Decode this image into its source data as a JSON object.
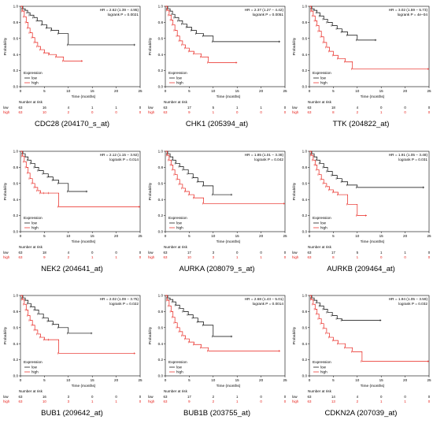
{
  "axis_labels": {
    "xlabel": "Time (months)",
    "ylabel": "Probability",
    "risk_title": "Number at risk",
    "legend_title": "Expression",
    "low_label": "low",
    "high_label": "high"
  },
  "colors": {
    "low": "#000000",
    "high": "#e8201a"
  },
  "chart_data": [
    {
      "type": "line",
      "title": "CDC28 (204170_s_at)",
      "hr_text": "HR = 2.62 (1.39 − 4.95)",
      "p_text": "logrank P = 0.0021",
      "xlabel": "Time (months)",
      "ylabel": "Probability",
      "xlim": [
        0,
        250
      ],
      "ylim": [
        0,
        1
      ],
      "xticks": [
        0,
        50,
        100,
        150,
        200,
        250
      ],
      "xtick_labels": [
        "0",
        "5",
        "10",
        "15",
        "20",
        "25"
      ],
      "yticks": [
        0,
        0.2,
        0.4,
        0.6,
        0.8,
        1.0
      ],
      "ytick_labels": [
        "0.0",
        "0.2",
        "0.4",
        "0.6",
        "0.8",
        "1.0"
      ],
      "series": [
        {
          "name": "low",
          "x": [
            0,
            5,
            10,
            15,
            20,
            28,
            35,
            45,
            55,
            65,
            80,
            100,
            240
          ],
          "y": [
            1.0,
            0.97,
            0.95,
            0.92,
            0.89,
            0.86,
            0.82,
            0.77,
            0.73,
            0.7,
            0.66,
            0.52,
            0.52
          ]
        },
        {
          "name": "high",
          "x": [
            0,
            4,
            8,
            12,
            16,
            20,
            25,
            30,
            36,
            42,
            50,
            60,
            75,
            90,
            130
          ],
          "y": [
            1.0,
            0.94,
            0.87,
            0.8,
            0.73,
            0.67,
            0.61,
            0.55,
            0.5,
            0.46,
            0.42,
            0.4,
            0.37,
            0.32,
            0.32
          ]
        }
      ],
      "risk_low": [
        "63",
        "16",
        "4",
        "1",
        "1",
        "0"
      ],
      "risk_high": [
        "63",
        "10",
        "2",
        "0",
        "0",
        "0"
      ]
    },
    {
      "type": "line",
      "title": "CHK1 (205394_at)",
      "hr_text": "HR = 2.37 (1.27 − 4.42)",
      "p_text": "logrank P = 0.0051",
      "xlabel": "Time (months)",
      "ylabel": "Probability",
      "xlim": [
        0,
        250
      ],
      "ylim": [
        0,
        1
      ],
      "xticks": [
        0,
        50,
        100,
        150,
        200,
        250
      ],
      "xtick_labels": [
        "0",
        "5",
        "10",
        "15",
        "20",
        "25"
      ],
      "yticks": [
        0,
        0.2,
        0.4,
        0.6,
        0.8,
        1.0
      ],
      "ytick_labels": [
        "0.0",
        "0.2",
        "0.4",
        "0.6",
        "0.8",
        "1.0"
      ],
      "series": [
        {
          "name": "low",
          "x": [
            0,
            5,
            10,
            15,
            20,
            28,
            36,
            45,
            55,
            65,
            80,
            100,
            240
          ],
          "y": [
            1.0,
            0.97,
            0.94,
            0.9,
            0.86,
            0.82,
            0.78,
            0.74,
            0.7,
            0.66,
            0.63,
            0.56,
            0.56
          ]
        },
        {
          "name": "high",
          "x": [
            0,
            4,
            8,
            12,
            16,
            20,
            25,
            30,
            36,
            42,
            50,
            60,
            75,
            90,
            150
          ],
          "y": [
            1.0,
            0.95,
            0.89,
            0.83,
            0.77,
            0.7,
            0.63,
            0.57,
            0.52,
            0.48,
            0.44,
            0.41,
            0.37,
            0.3,
            0.3
          ]
        }
      ],
      "risk_low": [
        "63",
        "17",
        "5",
        "1",
        "1",
        "0"
      ],
      "risk_high": [
        "63",
        "9",
        "1",
        "0",
        "0",
        "0"
      ]
    },
    {
      "type": "line",
      "title": "TTK (204822_at)",
      "hr_text": "HR = 3.02 (1.59 − 5.73)",
      "p_text": "logrank P = 4e−04",
      "xlabel": "Time (months)",
      "ylabel": "Probability",
      "xlim": [
        0,
        250
      ],
      "ylim": [
        0,
        1
      ],
      "xticks": [
        0,
        50,
        100,
        150,
        200,
        250
      ],
      "xtick_labels": [
        "0",
        "5",
        "10",
        "15",
        "20",
        "25"
      ],
      "yticks": [
        0,
        0.2,
        0.4,
        0.6,
        0.8,
        1.0
      ],
      "ytick_labels": [
        "0.0",
        "0.2",
        "0.4",
        "0.6",
        "0.8",
        "1.0"
      ],
      "series": [
        {
          "name": "low",
          "x": [
            0,
            5,
            10,
            16,
            22,
            30,
            38,
            48,
            58,
            68,
            80,
            100,
            140
          ],
          "y": [
            1.0,
            0.97,
            0.95,
            0.92,
            0.88,
            0.84,
            0.8,
            0.76,
            0.72,
            0.68,
            0.64,
            0.58,
            0.58
          ]
        },
        {
          "name": "high",
          "x": [
            0,
            4,
            8,
            12,
            16,
            20,
            25,
            30,
            36,
            42,
            50,
            60,
            75,
            90,
            250
          ],
          "y": [
            1.0,
            0.94,
            0.88,
            0.82,
            0.76,
            0.69,
            0.62,
            0.55,
            0.49,
            0.44,
            0.39,
            0.35,
            0.31,
            0.22,
            0.22
          ]
        }
      ],
      "risk_low": [
        "63",
        "18",
        "4",
        "0",
        "0",
        "0"
      ],
      "risk_high": [
        "63",
        "8",
        "2",
        "1",
        "0",
        "0"
      ]
    },
    {
      "type": "line",
      "title": "NEK2 (204641_at)",
      "hr_text": "HR = 2.12 (1.15 − 3.92)",
      "p_text": "logrank P = 0.014",
      "xlabel": "Time (months)",
      "ylabel": "Probability",
      "xlim": [
        0,
        250
      ],
      "ylim": [
        0,
        1
      ],
      "xticks": [
        0,
        50,
        100,
        150,
        200,
        250
      ],
      "xtick_labels": [
        "0",
        "5",
        "10",
        "15",
        "20",
        "25"
      ],
      "yticks": [
        0,
        0.2,
        0.4,
        0.6,
        0.8,
        1.0
      ],
      "ytick_labels": [
        "0.0",
        "0.2",
        "0.4",
        "0.6",
        "0.8",
        "1.0"
      ],
      "series": [
        {
          "name": "low",
          "x": [
            0,
            5,
            10,
            16,
            22,
            30,
            38,
            48,
            58,
            68,
            80,
            100,
            140
          ],
          "y": [
            1.0,
            0.97,
            0.93,
            0.89,
            0.85,
            0.8,
            0.76,
            0.72,
            0.68,
            0.64,
            0.6,
            0.5,
            0.5
          ]
        },
        {
          "name": "high",
          "x": [
            0,
            4,
            8,
            12,
            16,
            20,
            25,
            30,
            36,
            42,
            50,
            60,
            80,
            250
          ],
          "y": [
            1.0,
            0.94,
            0.87,
            0.8,
            0.73,
            0.66,
            0.6,
            0.55,
            0.51,
            0.48,
            0.48,
            0.48,
            0.31,
            0.31
          ]
        }
      ],
      "risk_low": [
        "63",
        "18",
        "4",
        "0",
        "0",
        "0"
      ],
      "risk_high": [
        "63",
        "9",
        "2",
        "1",
        "1",
        "0"
      ]
    },
    {
      "type": "line",
      "title": "AURKA (208079_s_at)",
      "hr_text": "HR = 1.85 (1.01 − 3.38)",
      "p_text": "logrank P = 0.042",
      "xlabel": "Time (months)",
      "ylabel": "Probability",
      "xlim": [
        0,
        250
      ],
      "ylim": [
        0,
        1
      ],
      "xticks": [
        0,
        50,
        100,
        150,
        200,
        250
      ],
      "xtick_labels": [
        "0",
        "5",
        "10",
        "15",
        "20",
        "25"
      ],
      "yticks": [
        0,
        0.2,
        0.4,
        0.6,
        0.8,
        1.0
      ],
      "ytick_labels": [
        "0.0",
        "0.2",
        "0.4",
        "0.6",
        "0.8",
        "1.0"
      ],
      "series": [
        {
          "name": "low",
          "x": [
            0,
            5,
            10,
            16,
            22,
            30,
            38,
            48,
            58,
            68,
            80,
            100,
            140
          ],
          "y": [
            1.0,
            0.97,
            0.93,
            0.89,
            0.85,
            0.81,
            0.77,
            0.72,
            0.67,
            0.62,
            0.57,
            0.46,
            0.46
          ]
        },
        {
          "name": "high",
          "x": [
            0,
            4,
            8,
            12,
            16,
            20,
            25,
            30,
            36,
            42,
            50,
            60,
            80,
            250
          ],
          "y": [
            1.0,
            0.95,
            0.89,
            0.83,
            0.77,
            0.71,
            0.65,
            0.59,
            0.54,
            0.5,
            0.46,
            0.42,
            0.35,
            0.35
          ]
        }
      ],
      "risk_low": [
        "63",
        "17",
        "3",
        "0",
        "0",
        "0"
      ],
      "risk_high": [
        "63",
        "10",
        "3",
        "1",
        "1",
        "0"
      ]
    },
    {
      "type": "line",
      "title": "AURKB (209464_at)",
      "hr_text": "HR = 1.91 (1.05 − 3.48)",
      "p_text": "logrank P = 0.031",
      "xlabel": "Time (months)",
      "ylabel": "Probability",
      "xlim": [
        0,
        250
      ],
      "ylim": [
        0,
        1
      ],
      "xticks": [
        0,
        50,
        100,
        150,
        200,
        250
      ],
      "xtick_labels": [
        "0",
        "5",
        "10",
        "15",
        "20",
        "25"
      ],
      "yticks": [
        0,
        0.2,
        0.4,
        0.6,
        0.8,
        1.0
      ],
      "ytick_labels": [
        "0.0",
        "0.2",
        "0.4",
        "0.6",
        "0.8",
        "1.0"
      ],
      "series": [
        {
          "name": "low",
          "x": [
            0,
            5,
            10,
            16,
            22,
            30,
            38,
            48,
            58,
            68,
            80,
            100,
            240
          ],
          "y": [
            1.0,
            0.97,
            0.93,
            0.89,
            0.85,
            0.8,
            0.75,
            0.7,
            0.66,
            0.62,
            0.58,
            0.55,
            0.55
          ]
        },
        {
          "name": "high",
          "x": [
            0,
            4,
            8,
            12,
            16,
            20,
            25,
            30,
            36,
            42,
            50,
            60,
            80,
            100,
            120
          ],
          "y": [
            1.0,
            0.95,
            0.89,
            0.83,
            0.77,
            0.71,
            0.65,
            0.6,
            0.56,
            0.52,
            0.49,
            0.46,
            0.34,
            0.2,
            0.2
          ]
        }
      ],
      "risk_low": [
        "63",
        "17",
        "5",
        "1",
        "1",
        "0"
      ],
      "risk_high": [
        "63",
        "8",
        "1",
        "0",
        "0",
        "0"
      ]
    },
    {
      "type": "line",
      "title": "BUB1 (209642_at)",
      "hr_text": "HR = 2.02 (1.09 − 3.75)",
      "p_text": "logrank P = 0.022",
      "xlabel": "Time (months)",
      "ylabel": "Probability",
      "xlim": [
        0,
        250
      ],
      "ylim": [
        0,
        1
      ],
      "xticks": [
        0,
        50,
        100,
        150,
        200,
        250
      ],
      "xtick_labels": [
        "0",
        "5",
        "10",
        "15",
        "20",
        "25"
      ],
      "yticks": [
        0,
        0.2,
        0.4,
        0.6,
        0.8,
        1.0
      ],
      "ytick_labels": [
        "0.0",
        "0.2",
        "0.4",
        "0.6",
        "0.8",
        "1.0"
      ],
      "series": [
        {
          "name": "low",
          "x": [
            0,
            5,
            10,
            16,
            22,
            30,
            38,
            48,
            58,
            68,
            80,
            100,
            150
          ],
          "y": [
            1.0,
            0.97,
            0.94,
            0.9,
            0.86,
            0.82,
            0.77,
            0.72,
            0.68,
            0.64,
            0.6,
            0.53,
            0.53
          ]
        },
        {
          "name": "high",
          "x": [
            0,
            4,
            8,
            12,
            16,
            20,
            25,
            30,
            36,
            42,
            50,
            60,
            80,
            240
          ],
          "y": [
            1.0,
            0.95,
            0.89,
            0.82,
            0.75,
            0.69,
            0.63,
            0.57,
            0.52,
            0.48,
            0.45,
            0.45,
            0.28,
            0.28
          ]
        }
      ],
      "risk_low": [
        "63",
        "16",
        "3",
        "0",
        "0",
        "0"
      ],
      "risk_high": [
        "63",
        "10",
        "3",
        "1",
        "1",
        "0"
      ]
    },
    {
      "type": "line",
      "title": "BUB1B (203755_at)",
      "hr_text": "HR = 2.68 (1.43 − 5.01)",
      "p_text": "logrank P = 0.0014",
      "xlabel": "Time (months)",
      "ylabel": "Probability",
      "xlim": [
        0,
        250
      ],
      "ylim": [
        0,
        1
      ],
      "xticks": [
        0,
        50,
        100,
        150,
        200,
        250
      ],
      "xtick_labels": [
        "0",
        "5",
        "10",
        "15",
        "20",
        "25"
      ],
      "yticks": [
        0,
        0.2,
        0.4,
        0.6,
        0.8,
        1.0
      ],
      "ytick_labels": [
        "0.0",
        "0.2",
        "0.4",
        "0.6",
        "0.8",
        "1.0"
      ],
      "series": [
        {
          "name": "low",
          "x": [
            0,
            5,
            10,
            16,
            22,
            30,
            38,
            48,
            58,
            68,
            80,
            100,
            140
          ],
          "y": [
            1.0,
            0.97,
            0.95,
            0.92,
            0.88,
            0.84,
            0.8,
            0.76,
            0.72,
            0.67,
            0.63,
            0.49,
            0.49
          ]
        },
        {
          "name": "high",
          "x": [
            0,
            4,
            8,
            12,
            16,
            20,
            25,
            30,
            36,
            42,
            50,
            60,
            75,
            90,
            240
          ],
          "y": [
            1.0,
            0.94,
            0.87,
            0.8,
            0.73,
            0.66,
            0.6,
            0.55,
            0.5,
            0.46,
            0.42,
            0.39,
            0.35,
            0.31,
            0.31
          ]
        }
      ],
      "risk_low": [
        "63",
        "17",
        "2",
        "1",
        "0",
        "0"
      ],
      "risk_high": [
        "63",
        "9",
        "2",
        "1",
        "0",
        "0"
      ]
    },
    {
      "type": "line",
      "title": "CDKN2A (207039_at)",
      "hr_text": "HR = 1.94 (1.05 − 3.59)",
      "p_text": "logrank P = 0.032",
      "xlabel": "Time (months)",
      "ylabel": "Probability",
      "xlim": [
        0,
        250
      ],
      "ylim": [
        0,
        1
      ],
      "xticks": [
        0,
        50,
        100,
        150,
        200,
        250
      ],
      "xtick_labels": [
        "0",
        "5",
        "10",
        "15",
        "20",
        "25"
      ],
      "yticks": [
        0,
        0.2,
        0.4,
        0.6,
        0.8,
        1.0
      ],
      "ytick_labels": [
        "0.0",
        "0.2",
        "0.4",
        "0.6",
        "0.8",
        "1.0"
      ],
      "series": [
        {
          "name": "low",
          "x": [
            0,
            5,
            10,
            16,
            22,
            30,
            38,
            48,
            58,
            68,
            150
          ],
          "y": [
            1.0,
            0.97,
            0.94,
            0.91,
            0.87,
            0.83,
            0.79,
            0.75,
            0.71,
            0.69,
            0.69
          ]
        },
        {
          "name": "high",
          "x": [
            0,
            4,
            8,
            12,
            16,
            20,
            25,
            30,
            36,
            42,
            50,
            60,
            75,
            90,
            110,
            250
          ],
          "y": [
            1.0,
            0.95,
            0.89,
            0.83,
            0.77,
            0.71,
            0.65,
            0.59,
            0.53,
            0.48,
            0.44,
            0.4,
            0.35,
            0.3,
            0.18,
            0.18
          ]
        }
      ],
      "risk_low": [
        "63",
        "14",
        "4",
        "0",
        "0",
        "0"
      ],
      "risk_high": [
        "63",
        "13",
        "2",
        "1",
        "1",
        "0"
      ]
    }
  ]
}
